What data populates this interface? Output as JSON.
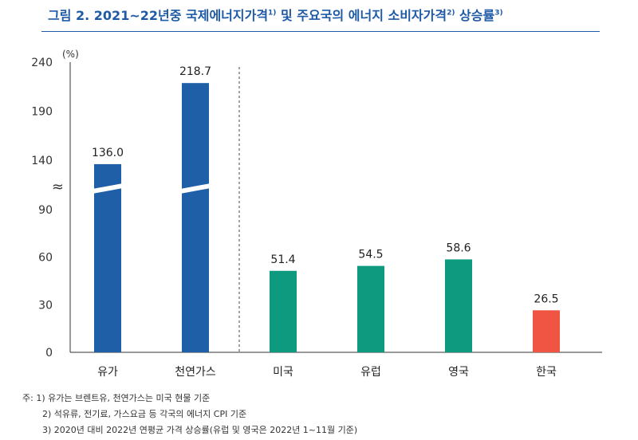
{
  "title": {
    "text_main": "그림 2. 2021~22년중 국제에너지가격",
    "sup1": "1)",
    "text_mid1": " 및 주요국의 에너지 소비자가격",
    "sup2": "2)",
    "text_mid2": " 상승률",
    "sup3": "3)"
  },
  "chart_data": {
    "type": "bar",
    "unit_label": "(%)",
    "categories": [
      "유가",
      "천연가스",
      "미국",
      "유럽",
      "영국",
      "한국"
    ],
    "values": [
      136.0,
      218.7,
      51.4,
      54.5,
      58.6,
      26.5
    ],
    "value_labels": [
      "136.0",
      "218.7",
      "51.4",
      "54.5",
      "58.6",
      "26.5"
    ],
    "bar_colors": [
      "#1e5fa8",
      "#1e5fa8",
      "#0e9a7e",
      "#0e9a7e",
      "#0e9a7e",
      "#f05543"
    ],
    "broken_axis": {
      "symbol": "≈",
      "lower_ticks": [
        0,
        30,
        60,
        90
      ],
      "upper_ticks": [
        140,
        190,
        240
      ],
      "lower_range": [
        0,
        90
      ],
      "upper_range": [
        140,
        240
      ]
    },
    "ylim": [
      0,
      240
    ],
    "divider_after_index": 1,
    "grid": false,
    "legend": "none"
  },
  "notes": [
    "주: 1) 유가는 브렌트유, 천연가스는 미국 현물 기준",
    "2) 석유류, 전기료, 가스요금 등 각국의 에너지 CPI 기준",
    "3) 2020년 대비 2022년 연평균 가격 상승률(유럽 및 영국은 2022년 1~11월 기준)"
  ]
}
